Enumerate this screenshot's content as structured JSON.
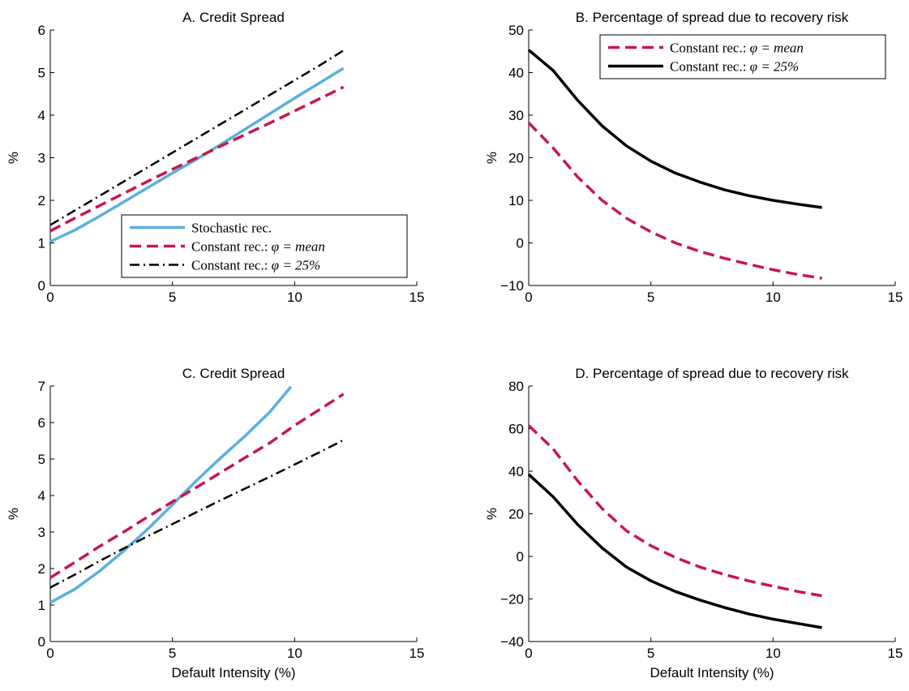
{
  "chart_data": [
    {
      "panel": "A",
      "type": "line",
      "title": "A. Credit Spread",
      "xlabel": "",
      "ylabel": "%",
      "xlim": [
        0,
        15
      ],
      "ylim": [
        0,
        6
      ],
      "xticks": [
        0,
        5,
        10,
        15
      ],
      "yticks": [
        0,
        1,
        2,
        3,
        4,
        5,
        6
      ],
      "grid": false,
      "legend": {
        "placement": "lower-right",
        "entries": [
          {
            "prefix": "Stochastic rec.",
            "math": ""
          },
          {
            "prefix": "Constant rec.: ",
            "math": "φ = mean"
          },
          {
            "prefix": "Constant rec.: ",
            "math": "φ = 25%"
          }
        ]
      },
      "series": [
        {
          "style": "solid",
          "color": "#5aafe0",
          "x": [
            0,
            1,
            2,
            3,
            4,
            5,
            6,
            7,
            8,
            9,
            10,
            11,
            12
          ],
          "y": [
            1.03,
            1.3,
            1.62,
            1.96,
            2.3,
            2.64,
            2.97,
            3.32,
            3.68,
            4.04,
            4.4,
            4.75,
            5.1
          ]
        },
        {
          "style": "dashed",
          "color": "#c8174d",
          "x": [
            0,
            1,
            2,
            3,
            4,
            5,
            6,
            7,
            8,
            9,
            10,
            11,
            12
          ],
          "y": [
            1.28,
            1.58,
            1.87,
            2.16,
            2.45,
            2.73,
            3.0,
            3.28,
            3.55,
            3.82,
            4.1,
            4.38,
            4.66
          ]
        },
        {
          "style": "dashdot",
          "color": "#000000",
          "x": [
            0,
            1,
            2,
            3,
            4,
            5,
            6,
            7,
            8,
            9,
            10,
            11,
            12
          ],
          "y": [
            1.42,
            1.76,
            2.1,
            2.44,
            2.78,
            3.12,
            3.46,
            3.8,
            4.14,
            4.48,
            4.82,
            5.16,
            5.52
          ]
        }
      ]
    },
    {
      "panel": "B",
      "type": "line",
      "title": "B. Percentage of spread due to recovery risk",
      "xlabel": "",
      "ylabel": "%",
      "xlim": [
        0,
        15
      ],
      "ylim": [
        -10,
        50
      ],
      "xticks": [
        0,
        5,
        10,
        15
      ],
      "yticks": [
        -10,
        0,
        10,
        20,
        30,
        40,
        50
      ],
      "grid": false,
      "legend": {
        "placement": "top-right",
        "entries": [
          {
            "prefix": "Constant rec.: ",
            "math": "φ = mean"
          },
          {
            "prefix": "Constant rec.: ",
            "math": "φ = 25%"
          }
        ]
      },
      "series": [
        {
          "style": "dashed",
          "color": "#c8174d",
          "x": [
            0,
            1,
            2,
            3,
            4,
            5,
            6,
            7,
            8,
            9,
            10,
            11,
            12
          ],
          "y": [
            28.2,
            22.3,
            15.5,
            10.0,
            5.8,
            2.6,
            0.0,
            -2.0,
            -3.6,
            -5.0,
            -6.3,
            -7.4,
            -8.3
          ]
        },
        {
          "style": "solid",
          "color": "#000000",
          "x": [
            0,
            1,
            2,
            3,
            4,
            5,
            6,
            7,
            8,
            9,
            10,
            11,
            12
          ],
          "y": [
            45.3,
            40.5,
            33.5,
            27.5,
            22.8,
            19.2,
            16.4,
            14.3,
            12.5,
            11.1,
            10.0,
            9.1,
            8.3
          ]
        }
      ]
    },
    {
      "panel": "C",
      "type": "line",
      "title": "C. Credit Spread",
      "xlabel": "Default Intensity (%)",
      "ylabel": "%",
      "xlim": [
        0,
        15
      ],
      "ylim": [
        0,
        7
      ],
      "xticks": [
        0,
        5,
        10,
        15
      ],
      "yticks": [
        0,
        1,
        2,
        3,
        4,
        5,
        6,
        7
      ],
      "grid": false,
      "series": [
        {
          "style": "solid",
          "color": "#5aafe0",
          "x": [
            0,
            1,
            2,
            3,
            4,
            5,
            6,
            7,
            8,
            9,
            9.85
          ],
          "y": [
            1.07,
            1.43,
            1.92,
            2.48,
            3.09,
            3.75,
            4.42,
            5.05,
            5.65,
            6.3,
            6.98
          ]
        },
        {
          "style": "dashed",
          "color": "#c8174d",
          "x": [
            0,
            1,
            2,
            3,
            4,
            5,
            6,
            7,
            8,
            9,
            10,
            11,
            12
          ],
          "y": [
            1.75,
            2.17,
            2.6,
            3.0,
            3.42,
            3.83,
            4.23,
            4.64,
            5.05,
            5.45,
            5.92,
            6.35,
            6.78
          ]
        },
        {
          "style": "dashdot",
          "color": "#000000",
          "x": [
            0,
            1,
            2,
            3,
            4,
            5,
            6,
            7,
            8,
            9,
            10,
            11,
            12
          ],
          "y": [
            1.48,
            1.83,
            2.2,
            2.55,
            2.89,
            3.22,
            3.55,
            3.88,
            4.2,
            4.52,
            4.85,
            5.18,
            5.52
          ]
        }
      ]
    },
    {
      "panel": "D",
      "type": "line",
      "title": "D. Percentage of spread due to recovery risk",
      "xlabel": "Default Intensity (%)",
      "ylabel": "%",
      "xlim": [
        0,
        15
      ],
      "ylim": [
        -40,
        80
      ],
      "xticks": [
        0,
        5,
        10,
        15
      ],
      "yticks": [
        -40,
        -20,
        0,
        20,
        40,
        60,
        80
      ],
      "grid": false,
      "series": [
        {
          "style": "dashed",
          "color": "#c8174d",
          "x": [
            0,
            1,
            2,
            3,
            4,
            5,
            6,
            7,
            8,
            9,
            10,
            11,
            12
          ],
          "y": [
            61.5,
            50.5,
            35.5,
            22.5,
            12.0,
            5.0,
            -0.5,
            -5.0,
            -8.5,
            -11.5,
            -14.0,
            -16.5,
            -18.5
          ]
        },
        {
          "style": "solid",
          "color": "#000000",
          "x": [
            0,
            1,
            2,
            3,
            4,
            5,
            6,
            7,
            8,
            9,
            10,
            11,
            12
          ],
          "y": [
            38.5,
            28.0,
            15.0,
            4.0,
            -5.0,
            -11.5,
            -16.5,
            -20.5,
            -24.0,
            -27.0,
            -29.5,
            -31.5,
            -33.5
          ]
        }
      ]
    }
  ]
}
